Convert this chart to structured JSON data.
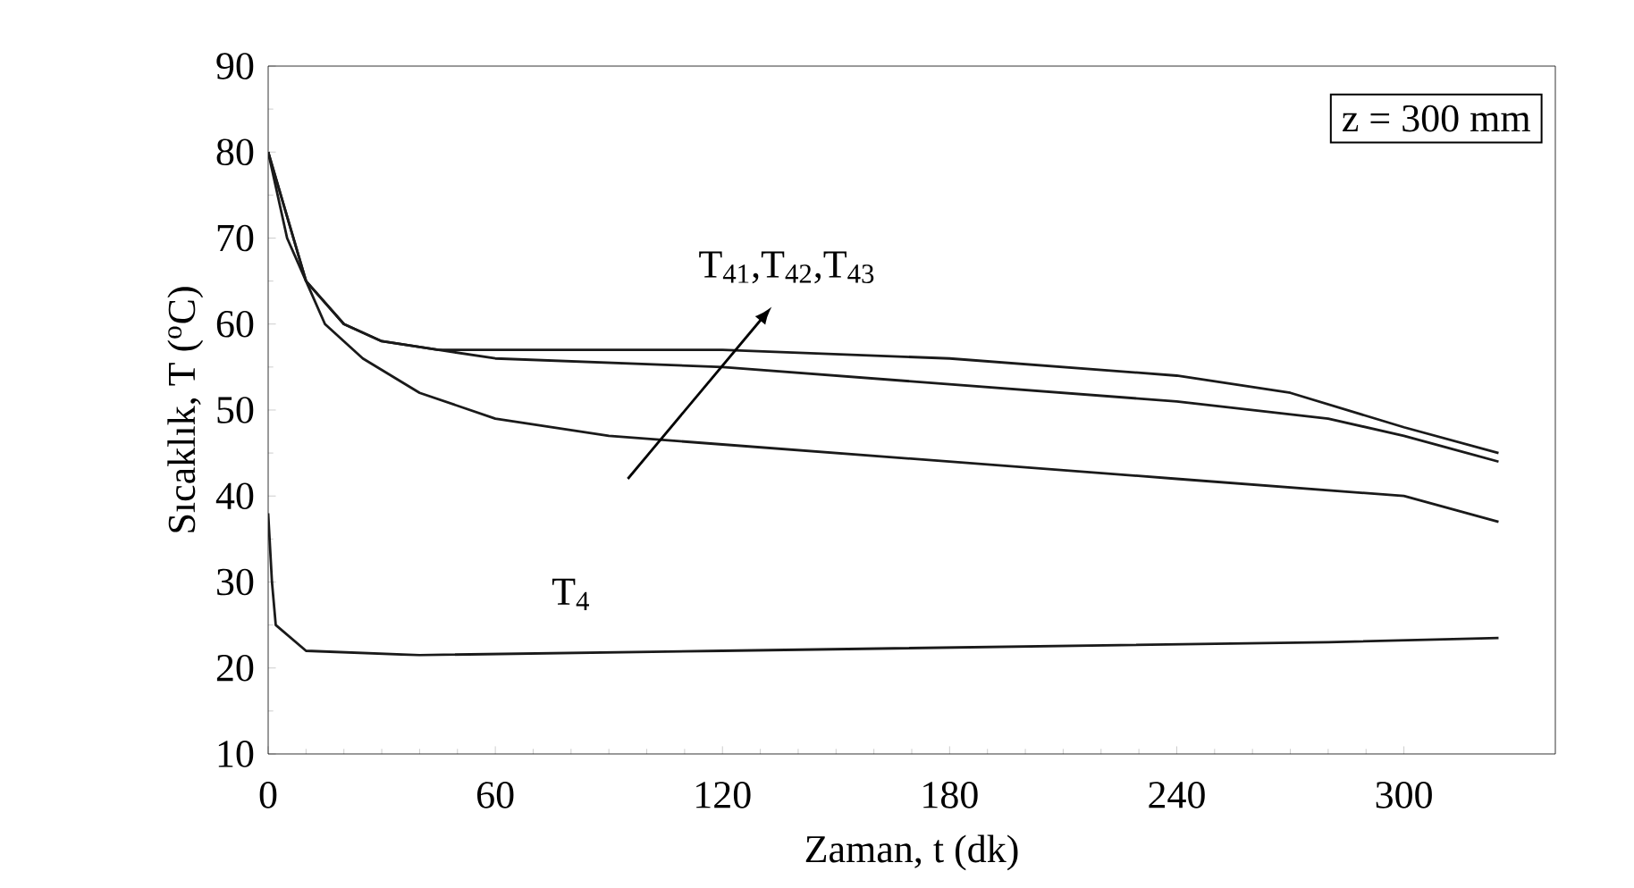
{
  "chart_data": {
    "type": "line",
    "xlabel": "Zaman, t (dk)",
    "ylabel": "Sıcaklık, T ($^{o}$C)",
    "xlim": [
      0,
      340
    ],
    "ylim": [
      10,
      90
    ],
    "xticks": [
      0,
      60,
      120,
      180,
      240,
      300
    ],
    "yticks": [
      10,
      20,
      30,
      40,
      50,
      60,
      70,
      80,
      90
    ],
    "grid": false,
    "marker": "none",
    "line_style": "solid",
    "annotations": [
      "z = 300 mm",
      "T$_{41}$,T$_{42}$,T$_{43}$",
      "T$_{4}$"
    ],
    "series": [
      {
        "color": "#1a1a1a",
        "x": [
          0,
          5,
          10,
          20,
          30,
          45,
          60,
          120,
          180,
          240,
          270,
          300,
          325
        ],
        "values": [
          80,
          70,
          65,
          60,
          58,
          57,
          57,
          57,
          56,
          54,
          52,
          48,
          45
        ]
      },
      {
        "color": "#1a1a1a",
        "x": [
          0,
          10,
          20,
          30,
          60,
          120,
          180,
          240,
          280,
          300,
          325
        ],
        "values": [
          80,
          65,
          60,
          58,
          56,
          55,
          53,
          51,
          49,
          47,
          44
        ]
      },
      {
        "color": "#1a1a1a",
        "x": [
          0,
          10,
          15,
          25,
          40,
          60,
          90,
          120,
          180,
          240,
          300,
          325
        ],
        "values": [
          80,
          65,
          60,
          56,
          52,
          49,
          47,
          46,
          44,
          42,
          40,
          37
        ]
      },
      {
        "color": "#1a1a1a",
        "x": [
          0,
          1,
          2,
          10,
          40,
          120,
          200,
          280,
          325
        ],
        "values": [
          38,
          30,
          25,
          22,
          21.5,
          22,
          22.5,
          23,
          23.5
        ]
      }
    ]
  }
}
